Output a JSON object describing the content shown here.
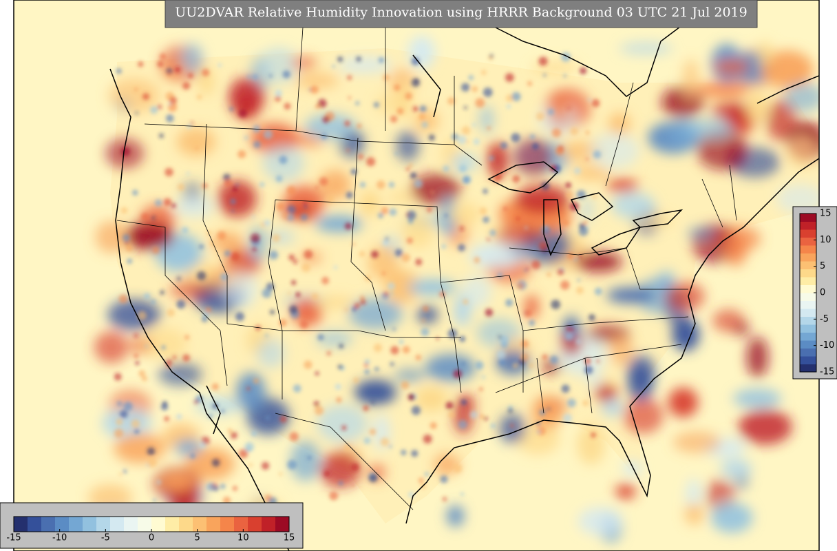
{
  "title": "UU2DVAR Relative Humidity Innovation using HRRR Background 03 UTC 21 Jul 2019",
  "colorbar": {
    "range": [
      -15,
      15
    ],
    "ticks": [
      -15,
      -10,
      -5,
      0,
      5,
      10,
      15
    ],
    "colors": [
      "#24306e",
      "#34509a",
      "#4a6fb0",
      "#5b8cc4",
      "#74a7d3",
      "#92c1df",
      "#b4d7e9",
      "#d4e9f1",
      "#eaf5f2",
      "#f7fbe8",
      "#fffbd2",
      "#feeda6",
      "#fdd98a",
      "#fcc073",
      "#f9a45c",
      "#f5854a",
      "#ea6340",
      "#d9402f",
      "#c02128",
      "#9c0a24"
    ]
  }
}
